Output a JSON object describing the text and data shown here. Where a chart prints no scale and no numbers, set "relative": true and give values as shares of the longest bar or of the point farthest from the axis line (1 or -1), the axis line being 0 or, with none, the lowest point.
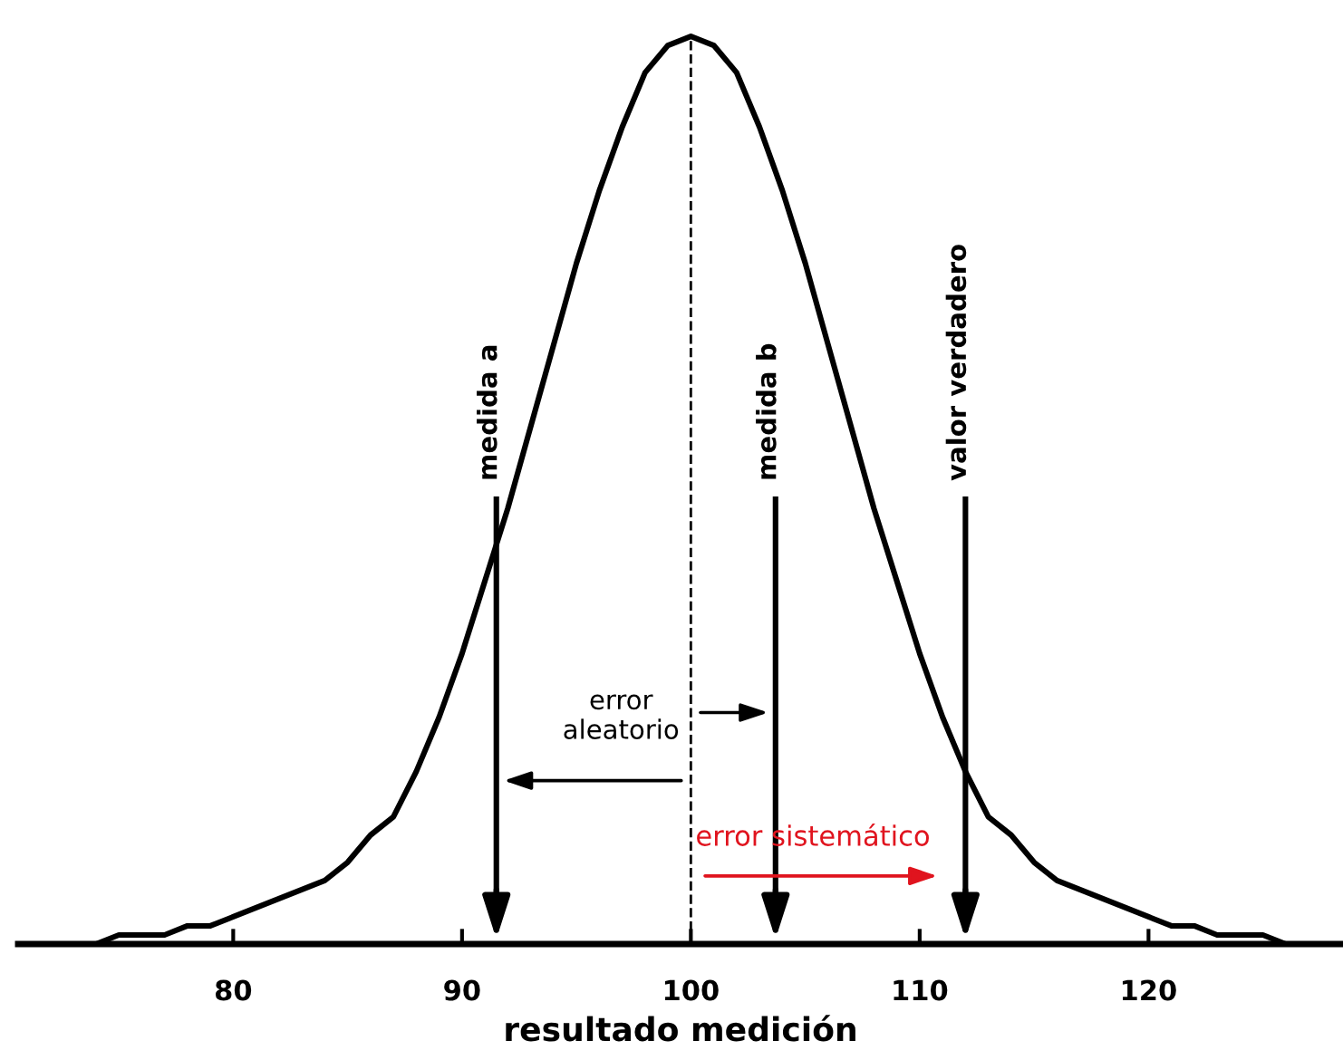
{
  "chart_data": {
    "type": "line",
    "relative": true,
    "xlabel": "resultado medición",
    "x": [
      72,
      73,
      74,
      75,
      76,
      77,
      78,
      79,
      80,
      81,
      82,
      83,
      84,
      85,
      86,
      87,
      88,
      89,
      90,
      91,
      92,
      93,
      94,
      95,
      96,
      97,
      98,
      99,
      100,
      101,
      102,
      103,
      104,
      105,
      106,
      107,
      108,
      109,
      110,
      111,
      112,
      113,
      114,
      115,
      116,
      117,
      118,
      119,
      120,
      121,
      122,
      123,
      124,
      125,
      126,
      127,
      128
    ],
    "series": [
      {
        "color": "#000000",
        "values": [
          0.0,
          0.0,
          0.0,
          0.01,
          0.01,
          0.01,
          0.02,
          0.02,
          0.03,
          0.04,
          0.05,
          0.06,
          0.07,
          0.09,
          0.12,
          0.14,
          0.19,
          0.25,
          0.32,
          0.4,
          0.48,
          0.57,
          0.66,
          0.75,
          0.83,
          0.9,
          0.96,
          0.99,
          1.0,
          0.99,
          0.96,
          0.9,
          0.83,
          0.75,
          0.66,
          0.57,
          0.48,
          0.4,
          0.32,
          0.25,
          0.19,
          0.14,
          0.12,
          0.09,
          0.07,
          0.06,
          0.05,
          0.04,
          0.03,
          0.02,
          0.02,
          0.01,
          0.01,
          0.01,
          0.0,
          0.0,
          0.0
        ]
      }
    ],
    "xlim": [
      70.6,
      128.5
    ],
    "xticks": [
      80,
      90,
      100,
      110,
      120
    ],
    "ref_lines": [
      {
        "axis": "x",
        "value": 91.5,
        "label": "medida a"
      },
      {
        "axis": "x",
        "value": 103.7,
        "label": "medida b"
      },
      {
        "axis": "x",
        "value": 112,
        "label": "valor verdadero"
      },
      {
        "axis": "x",
        "value": 100,
        "line_style": "dashed"
      }
    ],
    "annotations": [
      {
        "text": "error aleatorio",
        "x": 100,
        "y": 0.22
      },
      {
        "text": "error sistemático",
        "x": 100,
        "y": 0.09
      }
    ],
    "grid": false,
    "legend": false,
    "marker": "none",
    "line_style": "solid"
  }
}
